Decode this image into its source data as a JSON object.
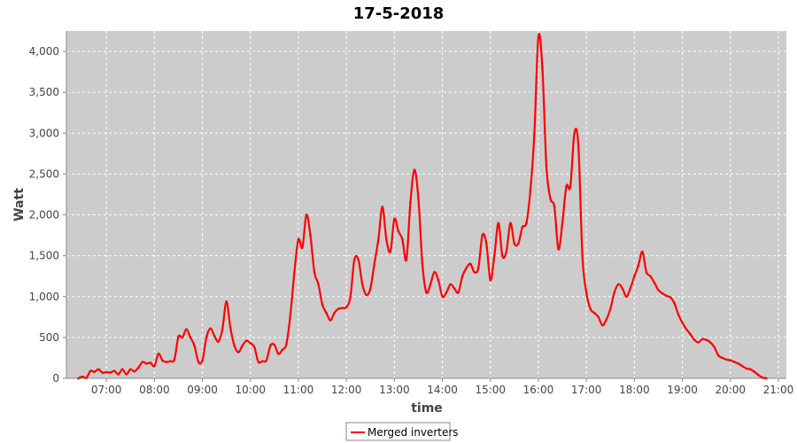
{
  "chart_data": {
    "type": "line",
    "title": "17-5-2018",
    "xlabel": "time",
    "ylabel": "Watt",
    "xlim": [
      "06:10",
      "21:10"
    ],
    "ylim": [
      0,
      4250
    ],
    "grid": true,
    "legend_position": "bottom-center",
    "x_ticks": [
      "07:00",
      "08:00",
      "09:00",
      "10:00",
      "11:00",
      "12:00",
      "13:00",
      "14:00",
      "15:00",
      "16:00",
      "17:00",
      "18:00",
      "19:00",
      "20:00",
      "21:00"
    ],
    "y_ticks": [
      0,
      500,
      1000,
      1500,
      2000,
      2500,
      3000,
      3500,
      4000
    ],
    "y_tick_labels": [
      "0",
      "500",
      "1,000",
      "1,500",
      "2,000",
      "2,500",
      "3,000",
      "3,500",
      "4,000"
    ],
    "colors": {
      "plot_background": "#cccccc",
      "series": "#ff0000",
      "grid": "#ffffff"
    },
    "series": [
      {
        "name": "Merged inverters",
        "color": "#ff0000",
        "points": [
          [
            "06:25",
            0
          ],
          [
            "06:30",
            20
          ],
          [
            "06:35",
            5
          ],
          [
            "06:40",
            90
          ],
          [
            "06:45",
            80
          ],
          [
            "06:50",
            110
          ],
          [
            "06:55",
            70
          ],
          [
            "07:00",
            75
          ],
          [
            "07:05",
            70
          ],
          [
            "07:10",
            90
          ],
          [
            "07:15",
            50
          ],
          [
            "07:20",
            110
          ],
          [
            "07:25",
            50
          ],
          [
            "07:30",
            110
          ],
          [
            "07:35",
            85
          ],
          [
            "07:40",
            130
          ],
          [
            "07:45",
            200
          ],
          [
            "07:50",
            180
          ],
          [
            "07:55",
            190
          ],
          [
            "08:00",
            150
          ],
          [
            "08:05",
            300
          ],
          [
            "08:10",
            220
          ],
          [
            "08:15",
            200
          ],
          [
            "08:20",
            210
          ],
          [
            "08:25",
            230
          ],
          [
            "08:30",
            510
          ],
          [
            "08:35",
            500
          ],
          [
            "08:40",
            600
          ],
          [
            "08:45",
            500
          ],
          [
            "08:50",
            400
          ],
          [
            "08:55",
            200
          ],
          [
            "09:00",
            220
          ],
          [
            "09:05",
            500
          ],
          [
            "09:10",
            610
          ],
          [
            "09:15",
            520
          ],
          [
            "09:20",
            450
          ],
          [
            "09:25",
            600
          ],
          [
            "09:30",
            940
          ],
          [
            "09:35",
            620
          ],
          [
            "09:40",
            400
          ],
          [
            "09:45",
            320
          ],
          [
            "09:50",
            400
          ],
          [
            "09:55",
            460
          ],
          [
            "10:00",
            430
          ],
          [
            "10:05",
            380
          ],
          [
            "10:10",
            200
          ],
          [
            "10:15",
            210
          ],
          [
            "10:20",
            220
          ],
          [
            "10:25",
            400
          ],
          [
            "10:30",
            410
          ],
          [
            "10:35",
            300
          ],
          [
            "10:40",
            350
          ],
          [
            "10:45",
            420
          ],
          [
            "10:50",
            780
          ],
          [
            "10:55",
            1300
          ],
          [
            "11:00",
            1700
          ],
          [
            "11:05",
            1600
          ],
          [
            "11:10",
            2000
          ],
          [
            "11:15",
            1750
          ],
          [
            "11:20",
            1300
          ],
          [
            "11:25",
            1150
          ],
          [
            "11:30",
            900
          ],
          [
            "11:35",
            800
          ],
          [
            "11:40",
            710
          ],
          [
            "11:45",
            800
          ],
          [
            "11:50",
            850
          ],
          [
            "11:55",
            860
          ],
          [
            "12:00",
            870
          ],
          [
            "12:05",
            1000
          ],
          [
            "12:10",
            1450
          ],
          [
            "12:15",
            1450
          ],
          [
            "12:20",
            1150
          ],
          [
            "12:25",
            1020
          ],
          [
            "12:30",
            1100
          ],
          [
            "12:35",
            1400
          ],
          [
            "12:40",
            1700
          ],
          [
            "12:45",
            2100
          ],
          [
            "12:50",
            1700
          ],
          [
            "12:55",
            1550
          ],
          [
            "13:00",
            1950
          ],
          [
            "13:05",
            1800
          ],
          [
            "13:10",
            1700
          ],
          [
            "13:15",
            1450
          ],
          [
            "13:20",
            2150
          ],
          [
            "13:25",
            2550
          ],
          [
            "13:30",
            2200
          ],
          [
            "13:35",
            1400
          ],
          [
            "13:40",
            1050
          ],
          [
            "13:45",
            1150
          ],
          [
            "13:50",
            1300
          ],
          [
            "13:55",
            1200
          ],
          [
            "14:00",
            1000
          ],
          [
            "14:05",
            1050
          ],
          [
            "14:10",
            1150
          ],
          [
            "14:15",
            1100
          ],
          [
            "14:20",
            1050
          ],
          [
            "14:25",
            1250
          ],
          [
            "14:30",
            1350
          ],
          [
            "14:35",
            1400
          ],
          [
            "14:40",
            1300
          ],
          [
            "14:45",
            1350
          ],
          [
            "14:50",
            1750
          ],
          [
            "14:55",
            1650
          ],
          [
            "15:00",
            1200
          ],
          [
            "15:05",
            1500
          ],
          [
            "15:10",
            1900
          ],
          [
            "15:15",
            1500
          ],
          [
            "15:20",
            1550
          ],
          [
            "15:25",
            1900
          ],
          [
            "15:30",
            1650
          ],
          [
            "15:35",
            1650
          ],
          [
            "15:40",
            1850
          ],
          [
            "15:45",
            1900
          ],
          [
            "15:50",
            2300
          ],
          [
            "15:55",
            3000
          ],
          [
            "16:00",
            4180
          ],
          [
            "16:05",
            3800
          ],
          [
            "16:10",
            2600
          ],
          [
            "16:15",
            2200
          ],
          [
            "16:20",
            2100
          ],
          [
            "16:25",
            1580
          ],
          [
            "16:30",
            1900
          ],
          [
            "16:35",
            2350
          ],
          [
            "16:40",
            2350
          ],
          [
            "16:45",
            3000
          ],
          [
            "16:50",
            2850
          ],
          [
            "16:55",
            1500
          ],
          [
            "17:00",
            1050
          ],
          [
            "17:05",
            850
          ],
          [
            "17:10",
            800
          ],
          [
            "17:15",
            750
          ],
          [
            "17:20",
            650
          ],
          [
            "17:25",
            720
          ],
          [
            "17:30",
            850
          ],
          [
            "17:35",
            1050
          ],
          [
            "17:40",
            1150
          ],
          [
            "17:45",
            1100
          ],
          [
            "17:50",
            1000
          ],
          [
            "17:55",
            1100
          ],
          [
            "18:00",
            1250
          ],
          [
            "18:05",
            1380
          ],
          [
            "18:10",
            1550
          ],
          [
            "18:15",
            1300
          ],
          [
            "18:20",
            1250
          ],
          [
            "18:25",
            1170
          ],
          [
            "18:30",
            1080
          ],
          [
            "18:35",
            1040
          ],
          [
            "18:40",
            1010
          ],
          [
            "18:45",
            990
          ],
          [
            "18:50",
            920
          ],
          [
            "18:55",
            780
          ],
          [
            "19:00",
            680
          ],
          [
            "19:05",
            600
          ],
          [
            "19:10",
            540
          ],
          [
            "19:15",
            470
          ],
          [
            "19:20",
            440
          ],
          [
            "19:25",
            480
          ],
          [
            "19:30",
            470
          ],
          [
            "19:35",
            440
          ],
          [
            "19:40",
            380
          ],
          [
            "19:45",
            280
          ],
          [
            "19:50",
            250
          ],
          [
            "19:55",
            230
          ],
          [
            "20:00",
            220
          ],
          [
            "20:05",
            200
          ],
          [
            "20:10",
            180
          ],
          [
            "20:15",
            150
          ],
          [
            "20:20",
            120
          ],
          [
            "20:25",
            110
          ],
          [
            "20:30",
            80
          ],
          [
            "20:35",
            40
          ],
          [
            "20:40",
            10
          ],
          [
            "20:45",
            0
          ]
        ]
      }
    ]
  }
}
